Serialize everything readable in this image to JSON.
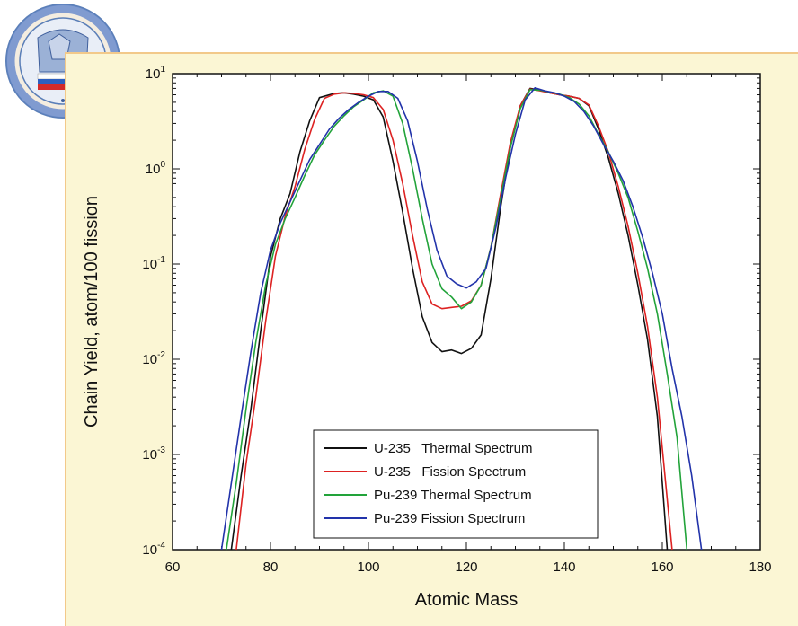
{
  "chart_data": {
    "type": "line",
    "xlabel": "Atomic Mass",
    "ylabel": "Chain Yield, atom/100 fission",
    "x_ticks": [
      60,
      80,
      100,
      120,
      140,
      160,
      180
    ],
    "xlim": [
      60,
      180
    ],
    "y_scale": "log",
    "ylim": [
      0.0001,
      10
    ],
    "y_ticks": [
      {
        "base": "10",
        "exp": "1",
        "value": 10
      },
      {
        "base": "10",
        "exp": "0",
        "value": 1
      },
      {
        "base": "10",
        "exp": "-1",
        "value": 0.1
      },
      {
        "base": "10",
        "exp": "-2",
        "value": 0.01
      },
      {
        "base": "10",
        "exp": "-3",
        "value": 0.001
      },
      {
        "base": "10",
        "exp": "-4",
        "value": 0.0001
      }
    ],
    "legend_position": "bottom-center",
    "series": [
      {
        "name": "U-235   Thermal Spectrum",
        "color": "#111111",
        "points": [
          [
            72,
            0.0001
          ],
          [
            74,
            0.0006
          ],
          [
            76,
            0.003
          ],
          [
            78,
            0.02
          ],
          [
            80,
            0.12
          ],
          [
            82,
            0.3
          ],
          [
            84,
            0.55
          ],
          [
            86,
            1.5
          ],
          [
            88,
            3.2
          ],
          [
            90,
            5.6
          ],
          [
            93,
            6.2
          ],
          [
            95,
            6.3
          ],
          [
            97,
            6.1
          ],
          [
            99,
            5.8
          ],
          [
            101,
            5.3
          ],
          [
            103,
            3.5
          ],
          [
            105,
            1.2
          ],
          [
            107,
            0.35
          ],
          [
            109,
            0.09
          ],
          [
            111,
            0.028
          ],
          [
            113,
            0.015
          ],
          [
            115,
            0.012
          ],
          [
            117,
            0.0125
          ],
          [
            119,
            0.0115
          ],
          [
            121,
            0.013
          ],
          [
            123,
            0.018
          ],
          [
            125,
            0.07
          ],
          [
            127,
            0.4
          ],
          [
            129,
            1.7
          ],
          [
            131,
            4.6
          ],
          [
            133,
            7.0
          ],
          [
            135,
            6.7
          ],
          [
            137,
            6.3
          ],
          [
            139,
            6.0
          ],
          [
            141,
            5.8
          ],
          [
            143,
            5.5
          ],
          [
            145,
            4.6
          ],
          [
            147,
            2.6
          ],
          [
            149,
            1.3
          ],
          [
            151,
            0.55
          ],
          [
            153,
            0.2
          ],
          [
            155,
            0.06
          ],
          [
            157,
            0.016
          ],
          [
            159,
            0.0025
          ],
          [
            161,
            0.0001
          ]
        ]
      },
      {
        "name": "U-235   Fission Spectrum",
        "color": "#dd2222",
        "points": [
          [
            73,
            0.0001
          ],
          [
            75,
            0.0008
          ],
          [
            77,
            0.004
          ],
          [
            79,
            0.025
          ],
          [
            81,
            0.12
          ],
          [
            83,
            0.32
          ],
          [
            85,
            0.65
          ],
          [
            87,
            1.6
          ],
          [
            89,
            3.3
          ],
          [
            91,
            5.5
          ],
          [
            93,
            6.1
          ],
          [
            95,
            6.3
          ],
          [
            97,
            6.2
          ],
          [
            99,
            6.0
          ],
          [
            101,
            5.6
          ],
          [
            103,
            4.2
          ],
          [
            105,
            2.0
          ],
          [
            107,
            0.7
          ],
          [
            109,
            0.2
          ],
          [
            111,
            0.065
          ],
          [
            113,
            0.038
          ],
          [
            115,
            0.034
          ],
          [
            117,
            0.035
          ],
          [
            119,
            0.036
          ],
          [
            121,
            0.041
          ],
          [
            123,
            0.06
          ],
          [
            125,
            0.15
          ],
          [
            127,
            0.55
          ],
          [
            129,
            1.9
          ],
          [
            131,
            4.6
          ],
          [
            133,
            6.9
          ],
          [
            135,
            6.6
          ],
          [
            137,
            6.3
          ],
          [
            139,
            6.0
          ],
          [
            141,
            5.8
          ],
          [
            143,
            5.5
          ],
          [
            145,
            4.7
          ],
          [
            147,
            2.8
          ],
          [
            149,
            1.5
          ],
          [
            151,
            0.65
          ],
          [
            153,
            0.25
          ],
          [
            155,
            0.08
          ],
          [
            157,
            0.022
          ],
          [
            159,
            0.004
          ],
          [
            162,
            0.0001
          ]
        ]
      },
      {
        "name": "Pu-239 Thermal Spectrum",
        "color": "#22a33a",
        "points": [
          [
            71,
            0.0001
          ],
          [
            73,
            0.0005
          ],
          [
            75,
            0.003
          ],
          [
            77,
            0.015
          ],
          [
            79,
            0.06
          ],
          [
            81,
            0.16
          ],
          [
            83,
            0.3
          ],
          [
            85,
            0.5
          ],
          [
            87,
            0.85
          ],
          [
            89,
            1.4
          ],
          [
            91,
            2.0
          ],
          [
            93,
            2.8
          ],
          [
            95,
            3.6
          ],
          [
            97,
            4.5
          ],
          [
            99,
            5.3
          ],
          [
            101,
            6.3
          ],
          [
            103,
            6.6
          ],
          [
            105,
            5.8
          ],
          [
            107,
            3.0
          ],
          [
            109,
            1.0
          ],
          [
            111,
            0.3
          ],
          [
            113,
            0.1
          ],
          [
            115,
            0.055
          ],
          [
            117,
            0.045
          ],
          [
            119,
            0.034
          ],
          [
            121,
            0.04
          ],
          [
            123,
            0.06
          ],
          [
            125,
            0.15
          ],
          [
            127,
            0.5
          ],
          [
            129,
            1.7
          ],
          [
            131,
            4.3
          ],
          [
            133,
            6.8
          ],
          [
            135,
            6.7
          ],
          [
            137,
            6.4
          ],
          [
            139,
            6.1
          ],
          [
            141,
            5.6
          ],
          [
            143,
            4.8
          ],
          [
            145,
            3.6
          ],
          [
            147,
            2.3
          ],
          [
            149,
            1.5
          ],
          [
            151,
            0.9
          ],
          [
            153,
            0.5
          ],
          [
            155,
            0.22
          ],
          [
            157,
            0.09
          ],
          [
            159,
            0.03
          ],
          [
            161,
            0.007
          ],
          [
            163,
            0.0015
          ],
          [
            165,
            0.0001
          ]
        ]
      },
      {
        "name": "Pu-239 Fission Spectrum",
        "color": "#2233aa",
        "points": [
          [
            70,
            0.0001
          ],
          [
            72,
            0.0005
          ],
          [
            74,
            0.0025
          ],
          [
            76,
            0.012
          ],
          [
            78,
            0.05
          ],
          [
            80,
            0.14
          ],
          [
            82,
            0.27
          ],
          [
            84,
            0.45
          ],
          [
            86,
            0.75
          ],
          [
            88,
            1.25
          ],
          [
            90,
            1.8
          ],
          [
            92,
            2.6
          ],
          [
            94,
            3.4
          ],
          [
            96,
            4.2
          ],
          [
            98,
            5.0
          ],
          [
            100,
            5.8
          ],
          [
            102,
            6.5
          ],
          [
            104,
            6.5
          ],
          [
            106,
            5.5
          ],
          [
            108,
            3.2
          ],
          [
            110,
            1.2
          ],
          [
            112,
            0.38
          ],
          [
            114,
            0.14
          ],
          [
            116,
            0.075
          ],
          [
            118,
            0.062
          ],
          [
            120,
            0.056
          ],
          [
            122,
            0.065
          ],
          [
            124,
            0.09
          ],
          [
            126,
            0.24
          ],
          [
            128,
            0.8
          ],
          [
            130,
            2.3
          ],
          [
            132,
            5.3
          ],
          [
            134,
            7.1
          ],
          [
            136,
            6.6
          ],
          [
            138,
            6.3
          ],
          [
            140,
            5.8
          ],
          [
            142,
            5.1
          ],
          [
            144,
            4.0
          ],
          [
            146,
            2.8
          ],
          [
            148,
            1.8
          ],
          [
            150,
            1.2
          ],
          [
            152,
            0.75
          ],
          [
            154,
            0.4
          ],
          [
            156,
            0.19
          ],
          [
            158,
            0.08
          ],
          [
            160,
            0.03
          ],
          [
            162,
            0.008
          ],
          [
            164,
            0.0025
          ],
          [
            166,
            0.0006
          ],
          [
            168,
            0.0001
          ]
        ]
      }
    ]
  }
}
